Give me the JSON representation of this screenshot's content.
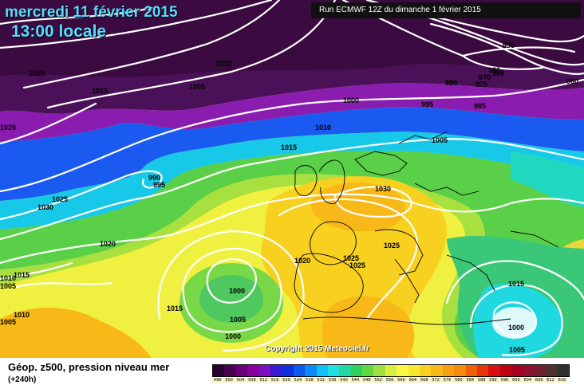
{
  "header": {
    "date": "mercredi 11 février 2015",
    "time": "13:00 locale",
    "run": "Run ECMWF 12Z du dimanche 1 février 2015",
    "copyright": "Copyright 2015 Meteociel.fr"
  },
  "footer": {
    "param_title": "Géop. z500, pression niveau mer",
    "param_sub": "(+240h)"
  },
  "legend": {
    "values": [
      "496",
      "500",
      "504",
      "508",
      "512",
      "516",
      "520",
      "524",
      "528",
      "532",
      "536",
      "540",
      "544",
      "548",
      "552",
      "556",
      "560",
      "564",
      "568",
      "572",
      "576",
      "580",
      "584",
      "588",
      "592",
      "596",
      "600",
      "604",
      "608",
      "612",
      "616"
    ],
    "colors": [
      "#2a0030",
      "#4a0050",
      "#6a0078",
      "#8a00a0",
      "#7a10c0",
      "#3a1ad0",
      "#1030e0",
      "#0a5af0",
      "#0a8af8",
      "#10c0f8",
      "#20e0e0",
      "#20d8a0",
      "#30d060",
      "#60d840",
      "#a0e040",
      "#d8f040",
      "#f8f840",
      "#f8e830",
      "#f8d020",
      "#f8b818",
      "#f8a010",
      "#f88810",
      "#f06008",
      "#e83808",
      "#d81010",
      "#c00010",
      "#a80020",
      "#901030",
      "#702030",
      "#503030",
      "#303030"
    ]
  },
  "isobars": [
    "1020",
    "1010",
    "1015",
    "1005",
    "1000",
    "990",
    "980",
    "975",
    "970",
    "965",
    "960",
    "955",
    "995",
    "985",
    "1015",
    "1010",
    "1005",
    "1020",
    "995",
    "990",
    "1025",
    "1030",
    "1020",
    "1030",
    "1025",
    "1020",
    "1025",
    "1025",
    "1015",
    "1010",
    "1005",
    "1015",
    "1000",
    "1005",
    "1010",
    "1015",
    "1000",
    "1005",
    "1005",
    "1000"
  ]
}
